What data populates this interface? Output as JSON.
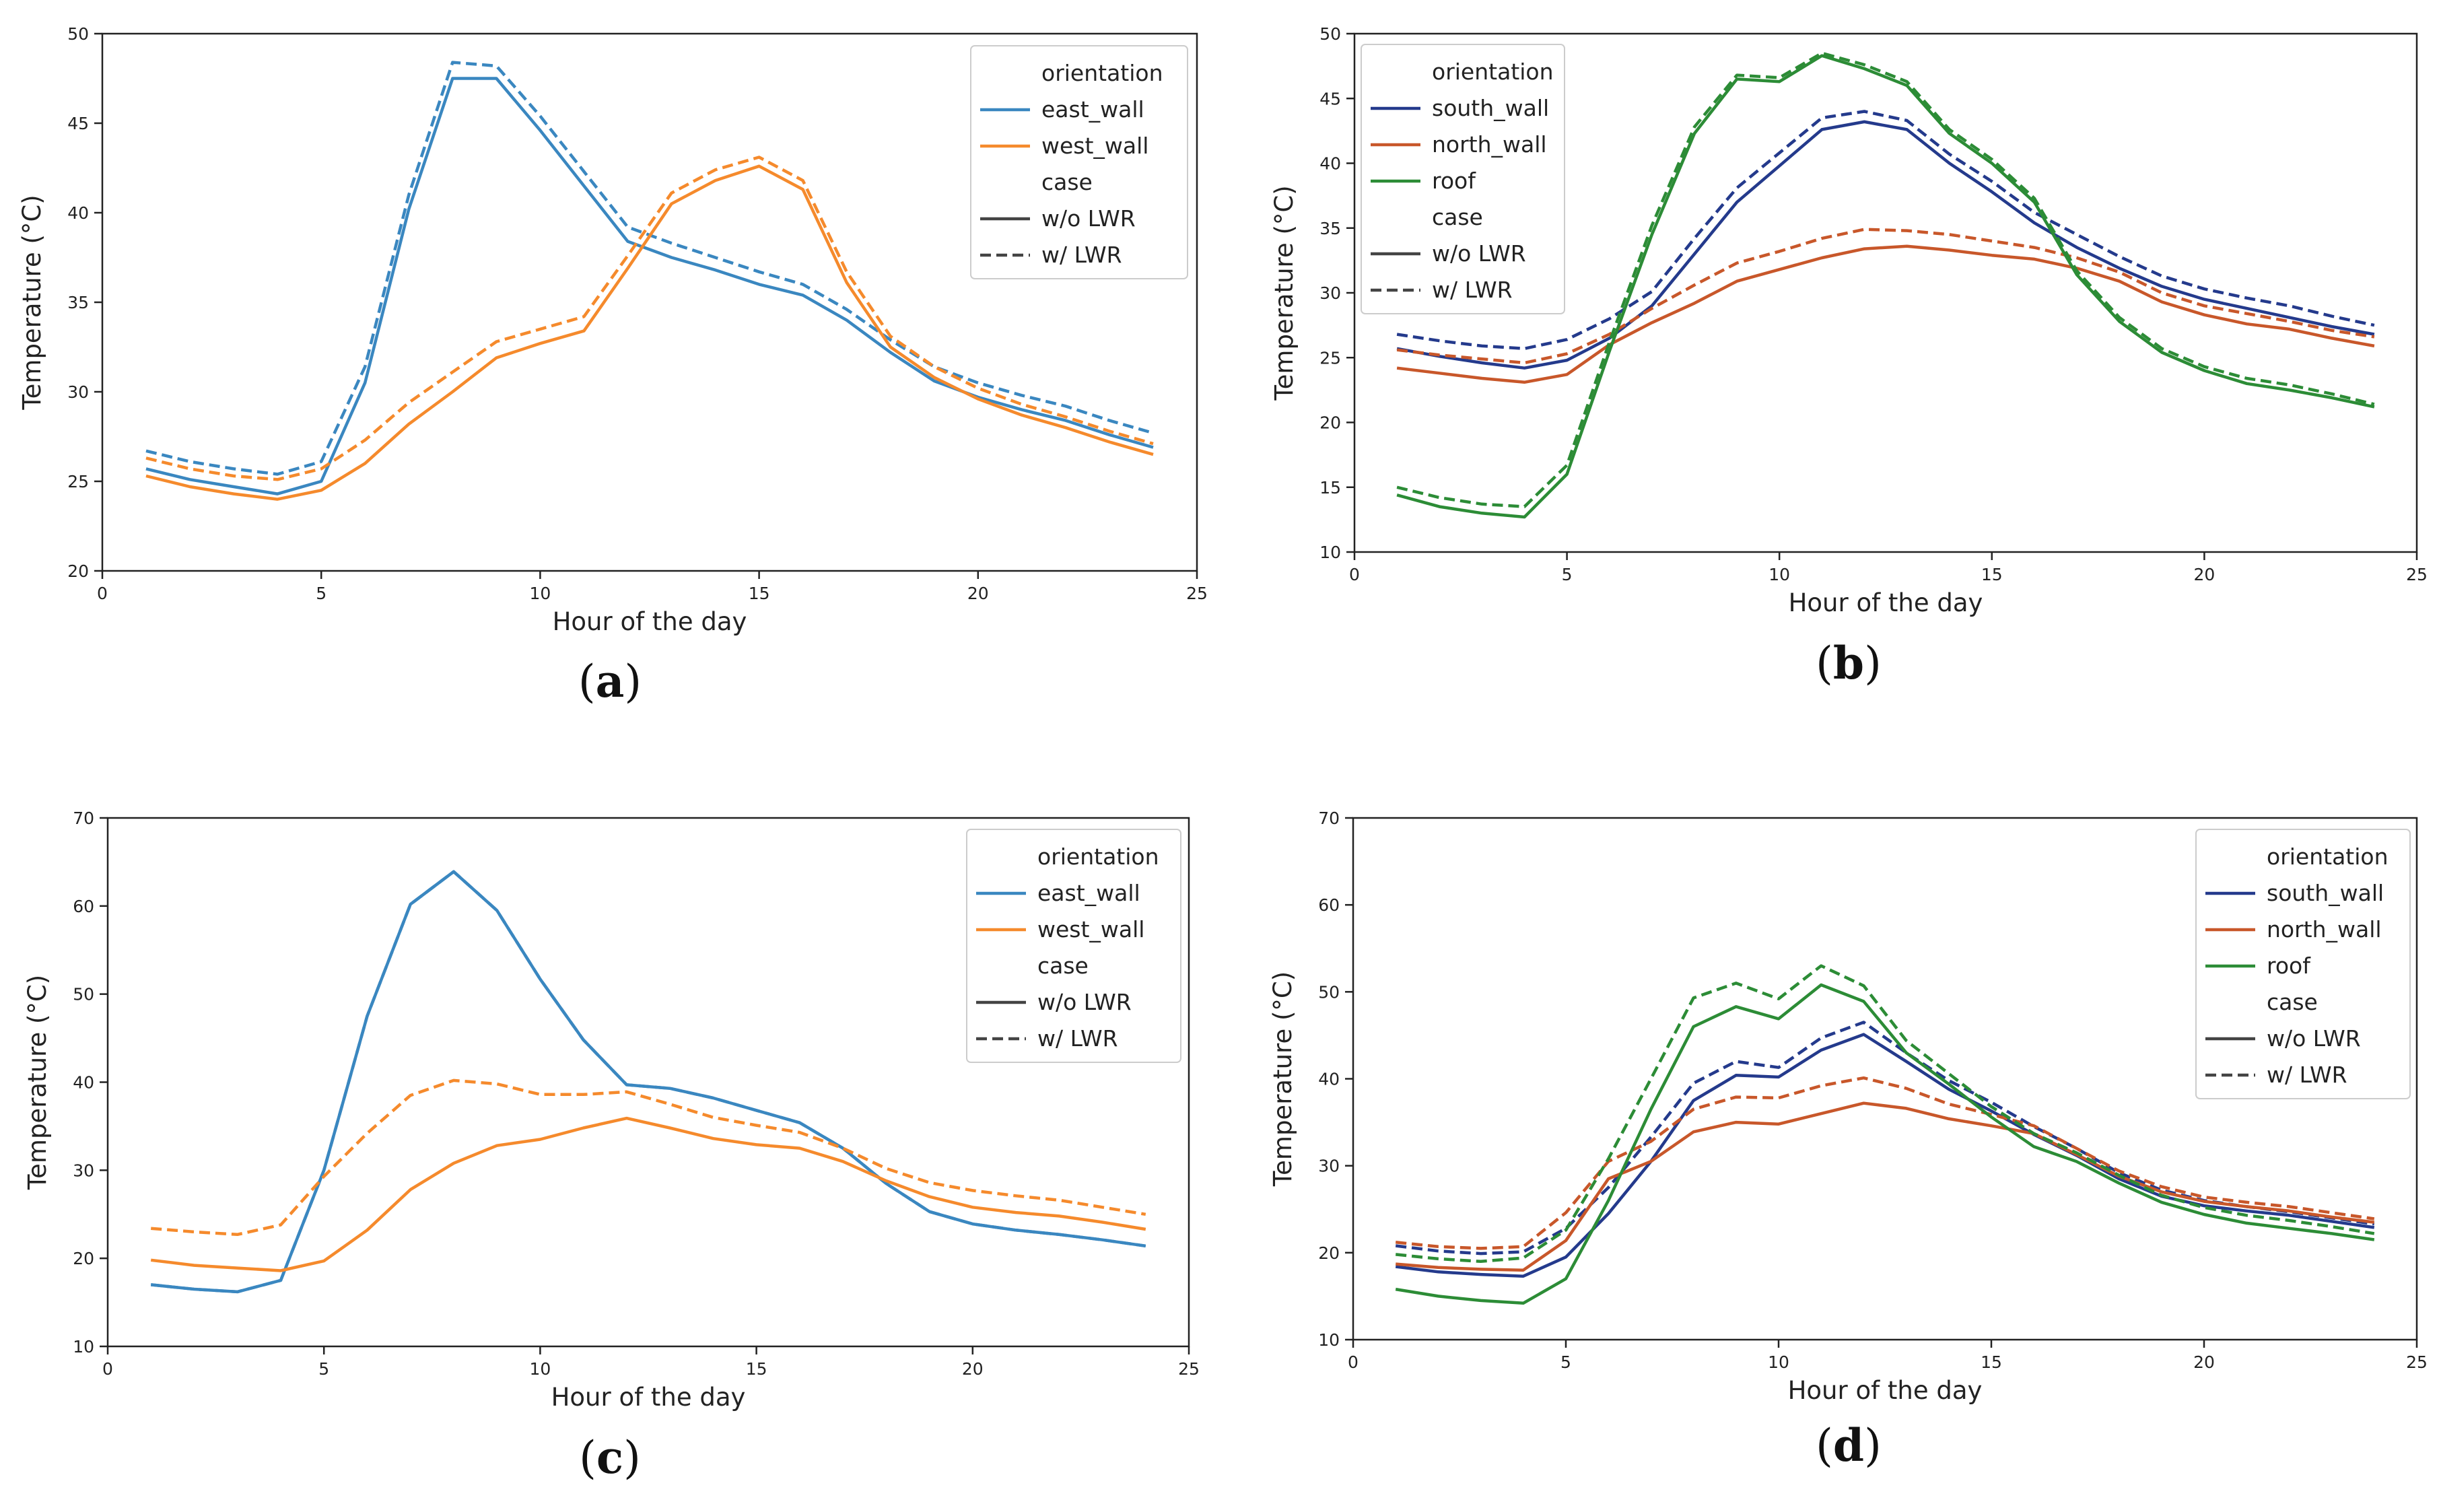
{
  "panels": [
    {
      "label": "(a)",
      "letter": "a"
    },
    {
      "label": "(b)",
      "letter": "b"
    },
    {
      "label": "(c)",
      "letter": "c"
    },
    {
      "label": "(d)",
      "letter": "d"
    }
  ],
  "colors": {
    "east_wall": "#3a87c0",
    "west_wall": "#f58a2c",
    "south_wall": "#243a8c",
    "north_wall": "#c8572a",
    "roof": "#2c8c36",
    "case": "#444444"
  },
  "chart_data": [
    {
      "type": "line",
      "title": "",
      "xlabel": "Hour of the day",
      "ylabel": "Temperature (°C)",
      "xlim": [
        0,
        25
      ],
      "ylim": [
        20,
        50
      ],
      "xticks": [
        0,
        5,
        10,
        15,
        20,
        25
      ],
      "yticks": [
        20,
        25,
        30,
        35,
        40,
        45,
        50
      ],
      "grid": false,
      "legend_position": "top-right",
      "legend": {
        "orientation_title": "orientation",
        "case_title": "case",
        "orientations": [
          "east_wall",
          "west_wall"
        ],
        "cases": [
          "w/o LWR",
          "w/ LWR"
        ]
      },
      "x": [
        1,
        2,
        3,
        4,
        5,
        6,
        7,
        8,
        9,
        10,
        11,
        12,
        13,
        14,
        15,
        16,
        17,
        18,
        19,
        20,
        21,
        22,
        23,
        24
      ],
      "series": [
        {
          "name": "east_wall",
          "case": "w/o LWR",
          "values": [
            25.7,
            25.1,
            24.7,
            24.3,
            25.0,
            30.5,
            40.2,
            47.5,
            47.5,
            44.6,
            41.5,
            38.4,
            37.5,
            36.8,
            36.0,
            35.4,
            34.0,
            32.2,
            30.6,
            29.7,
            29.0,
            28.4,
            27.6,
            26.9
          ]
        },
        {
          "name": "east_wall",
          "case": "w/ LWR",
          "values": [
            26.7,
            26.1,
            25.7,
            25.4,
            26.1,
            31.4,
            41.0,
            48.4,
            48.2,
            45.4,
            42.3,
            39.2,
            38.3,
            37.5,
            36.7,
            36.0,
            34.6,
            32.9,
            31.4,
            30.5,
            29.8,
            29.2,
            28.4,
            27.7
          ]
        },
        {
          "name": "west_wall",
          "case": "w/o LWR",
          "values": [
            25.3,
            24.7,
            24.3,
            24.0,
            24.5,
            26.0,
            28.2,
            30.0,
            31.9,
            32.7,
            33.4,
            36.9,
            40.5,
            41.8,
            42.6,
            41.3,
            36.1,
            32.5,
            30.8,
            29.6,
            28.7,
            28.0,
            27.2,
            26.5
          ]
        },
        {
          "name": "west_wall",
          "case": "w/ LWR",
          "values": [
            26.3,
            25.7,
            25.3,
            25.1,
            25.7,
            27.3,
            29.4,
            31.1,
            32.8,
            33.5,
            34.2,
            37.6,
            41.1,
            42.4,
            43.1,
            41.8,
            36.7,
            33.1,
            31.4,
            30.2,
            29.3,
            28.6,
            27.8,
            27.1
          ]
        }
      ]
    },
    {
      "type": "line",
      "title": "",
      "xlabel": "Hour of the day",
      "ylabel": "Temperature (°C)",
      "xlim": [
        0,
        25
      ],
      "ylim": [
        10,
        50
      ],
      "xticks": [
        0,
        5,
        10,
        15,
        20,
        25
      ],
      "yticks": [
        10,
        15,
        20,
        25,
        30,
        35,
        40,
        45,
        50
      ],
      "grid": false,
      "legend_position": "top-left",
      "legend": {
        "orientation_title": "orientation",
        "case_title": "case",
        "orientations": [
          "south_wall",
          "north_wall",
          "roof"
        ],
        "cases": [
          "w/o LWR",
          "w/ LWR"
        ]
      },
      "x": [
        1,
        2,
        3,
        4,
        5,
        6,
        7,
        8,
        9,
        10,
        11,
        12,
        13,
        14,
        15,
        16,
        17,
        18,
        19,
        20,
        21,
        22,
        23,
        24
      ],
      "series": [
        {
          "name": "south_wall",
          "case": "w/o LWR",
          "values": [
            25.7,
            25.1,
            24.6,
            24.2,
            24.8,
            26.5,
            29.0,
            33.0,
            37.0,
            39.8,
            42.6,
            43.2,
            42.6,
            40.0,
            37.8,
            35.4,
            33.5,
            31.9,
            30.5,
            29.5,
            28.8,
            28.1,
            27.4,
            26.8
          ]
        },
        {
          "name": "south_wall",
          "case": "w/ LWR",
          "values": [
            26.8,
            26.3,
            25.9,
            25.7,
            26.4,
            28.0,
            30.1,
            34.2,
            38.1,
            40.8,
            43.5,
            44.0,
            43.3,
            40.7,
            38.6,
            36.2,
            34.5,
            32.8,
            31.3,
            30.3,
            29.6,
            29.0,
            28.2,
            27.5
          ]
        },
        {
          "name": "north_wall",
          "case": "w/o LWR",
          "values": [
            24.2,
            23.8,
            23.4,
            23.1,
            23.7,
            26.0,
            27.7,
            29.2,
            30.9,
            31.8,
            32.7,
            33.4,
            33.6,
            33.3,
            32.9,
            32.6,
            31.9,
            30.9,
            29.3,
            28.3,
            27.6,
            27.2,
            26.5,
            25.9
          ]
        },
        {
          "name": "north_wall",
          "case": "w/ LWR",
          "values": [
            25.6,
            25.2,
            24.9,
            24.6,
            25.3,
            26.8,
            28.8,
            30.6,
            32.3,
            33.2,
            34.2,
            34.9,
            34.8,
            34.5,
            34.0,
            33.5,
            32.7,
            31.6,
            30.0,
            29.0,
            28.4,
            27.8,
            27.1,
            26.6
          ]
        },
        {
          "name": "roof",
          "case": "w/o LWR",
          "values": [
            14.4,
            13.5,
            13.0,
            12.7,
            16.0,
            25.5,
            34.5,
            42.3,
            46.5,
            46.3,
            48.3,
            47.3,
            46.0,
            42.3,
            40.0,
            37.0,
            31.4,
            27.8,
            25.4,
            24.0,
            23.0,
            22.5,
            21.9,
            21.2
          ]
        },
        {
          "name": "roof",
          "case": "w/ LWR",
          "values": [
            15.0,
            14.2,
            13.7,
            13.5,
            16.7,
            26.2,
            35.2,
            42.8,
            46.8,
            46.6,
            48.5,
            47.6,
            46.3,
            42.6,
            40.3,
            37.3,
            31.7,
            28.1,
            25.7,
            24.3,
            23.4,
            22.9,
            22.2,
            21.4
          ]
        }
      ]
    },
    {
      "type": "line",
      "title": "",
      "xlabel": "Hour of the day",
      "ylabel": "Temperature (°C)",
      "xlim": [
        0,
        25
      ],
      "ylim": [
        10,
        70
      ],
      "xticks": [
        0,
        5,
        10,
        15,
        20,
        25
      ],
      "yticks": [
        10,
        20,
        30,
        40,
        50,
        60,
        70
      ],
      "grid": false,
      "legend_position": "top-right",
      "legend": {
        "orientation_title": "orientation",
        "case_title": "case",
        "orientations": [
          "east_wall",
          "west_wall"
        ],
        "cases": [
          "w/o LWR",
          "w/ LWR"
        ]
      },
      "x": [
        1,
        2,
        3,
        4,
        5,
        6,
        7,
        8,
        9,
        10,
        11,
        12,
        13,
        14,
        15,
        16,
        17,
        18,
        19,
        20,
        21,
        22,
        23,
        24
      ],
      "series": [
        {
          "name": "east_wall",
          "case": "w/o LWR",
          "values": [
            17.0,
            16.5,
            16.2,
            17.5,
            30.0,
            47.5,
            60.2,
            63.9,
            59.5,
            51.7,
            44.8,
            39.7,
            39.3,
            38.2,
            36.8,
            35.4,
            32.5,
            28.5,
            25.3,
            23.9,
            23.2,
            22.7,
            22.1,
            21.4
          ]
        },
        {
          "name": "east_wall",
          "case": "w/ LWR",
          "values": [
            17.0,
            16.5,
            16.2,
            17.5,
            30.0,
            47.5,
            60.2,
            63.9,
            59.5,
            51.7,
            44.8,
            39.7,
            39.3,
            38.2,
            36.8,
            35.4,
            32.5,
            28.5,
            25.3,
            23.9,
            23.2,
            22.7,
            22.1,
            21.4
          ]
        },
        {
          "name": "west_wall",
          "case": "w/o LWR",
          "values": [
            19.8,
            19.2,
            18.9,
            18.6,
            19.7,
            23.2,
            27.8,
            30.8,
            32.8,
            33.5,
            34.8,
            35.9,
            34.8,
            33.6,
            32.9,
            32.5,
            31.0,
            28.8,
            27.0,
            25.8,
            25.2,
            24.8,
            24.1,
            23.3
          ]
        },
        {
          "name": "west_wall",
          "case": "w/ LWR",
          "values": [
            23.4,
            23.0,
            22.7,
            23.8,
            29.3,
            34.2,
            38.5,
            40.2,
            39.8,
            38.6,
            38.6,
            38.9,
            37.5,
            36.0,
            35.1,
            34.3,
            32.5,
            30.2,
            28.6,
            27.7,
            27.1,
            26.6,
            25.8,
            25.0
          ]
        }
      ]
    },
    {
      "type": "line",
      "title": "",
      "xlabel": "Hour of the day",
      "ylabel": "Temperature (°C)",
      "xlim": [
        0,
        25
      ],
      "ylim": [
        10,
        70
      ],
      "xticks": [
        0,
        5,
        10,
        15,
        20,
        25
      ],
      "yticks": [
        10,
        20,
        30,
        40,
        50,
        60,
        70
      ],
      "grid": false,
      "legend_position": "top-right",
      "legend": {
        "orientation_title": "orientation",
        "case_title": "case",
        "orientations": [
          "south_wall",
          "north_wall",
          "roof"
        ],
        "cases": [
          "w/o LWR",
          "w/ LWR"
        ]
      },
      "x": [
        1,
        2,
        3,
        4,
        5,
        6,
        7,
        8,
        9,
        10,
        11,
        12,
        13,
        14,
        15,
        16,
        17,
        18,
        19,
        20,
        21,
        22,
        23,
        24
      ],
      "series": [
        {
          "name": "south_wall",
          "case": "w/o LWR",
          "values": [
            18.4,
            17.8,
            17.5,
            17.3,
            19.5,
            24.5,
            30.5,
            37.5,
            40.4,
            40.2,
            43.3,
            45.1,
            42.0,
            38.8,
            36.3,
            33.6,
            31.2,
            28.5,
            26.5,
            25.4,
            24.8,
            24.3,
            23.6,
            22.9
          ]
        },
        {
          "name": "south_wall",
          "case": "w/ LWR",
          "values": [
            20.8,
            20.2,
            19.9,
            20.1,
            22.8,
            27.5,
            33.3,
            39.5,
            42.0,
            41.3,
            44.7,
            46.5,
            43.0,
            39.8,
            37.3,
            34.5,
            32.0,
            29.2,
            27.2,
            26.0,
            25.3,
            24.7,
            24.0,
            23.3
          ]
        },
        {
          "name": "north_wall",
          "case": "w/o LWR",
          "values": [
            18.7,
            18.3,
            18.1,
            18.0,
            21.4,
            28.5,
            30.5,
            33.9,
            35.0,
            34.8,
            36.0,
            37.2,
            36.6,
            35.4,
            34.6,
            33.7,
            31.3,
            28.8,
            27.0,
            25.9,
            25.3,
            24.8,
            24.1,
            23.5
          ]
        },
        {
          "name": "north_wall",
          "case": "w/ LWR",
          "values": [
            21.2,
            20.7,
            20.5,
            20.7,
            24.6,
            30.5,
            32.8,
            36.5,
            37.9,
            37.8,
            39.2,
            40.1,
            38.9,
            37.1,
            35.9,
            34.6,
            32.0,
            29.4,
            27.6,
            26.4,
            25.8,
            25.3,
            24.6,
            23.9
          ]
        },
        {
          "name": "roof",
          "case": "w/o LWR",
          "values": [
            15.8,
            15.0,
            14.5,
            14.2,
            17.0,
            26.0,
            36.5,
            46.0,
            48.3,
            46.9,
            50.8,
            48.9,
            43.0,
            39.4,
            35.6,
            32.2,
            30.5,
            28.0,
            25.8,
            24.4,
            23.4,
            22.8,
            22.2,
            21.5
          ]
        },
        {
          "name": "roof",
          "case": "w/ LWR",
          "values": [
            19.8,
            19.3,
            19.0,
            19.4,
            22.6,
            30.8,
            40.0,
            49.3,
            51.0,
            49.2,
            53.0,
            50.7,
            44.4,
            40.6,
            36.8,
            33.7,
            31.5,
            28.9,
            26.6,
            25.2,
            24.3,
            23.7,
            23.0,
            22.2
          ]
        }
      ]
    }
  ]
}
